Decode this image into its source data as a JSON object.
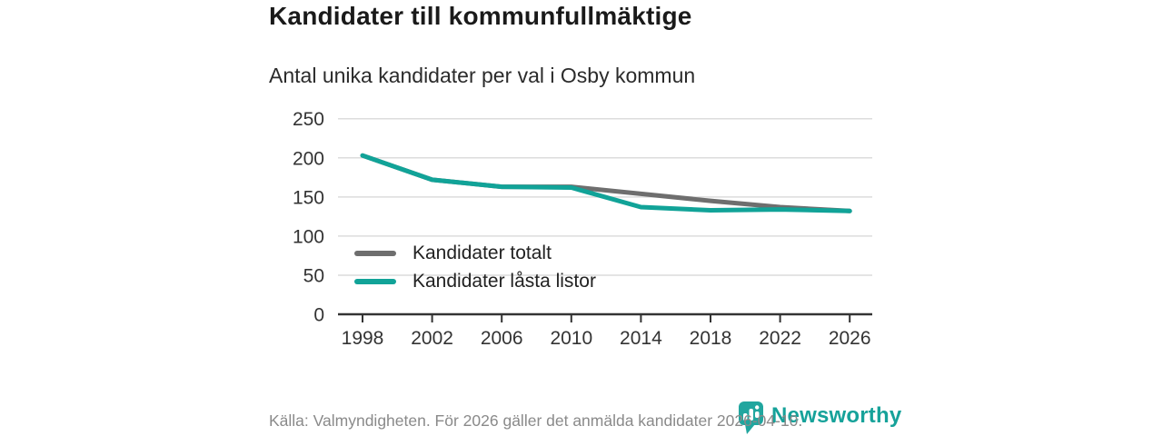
{
  "header": {
    "title": "Kandidater till kommunfullmäktige",
    "subtitle": "Antal unika kandidater per val i Osby kommun"
  },
  "chart_data": {
    "type": "line",
    "title": "Kandidater till kommunfullmäktige",
    "subtitle": "Antal unika kandidater per val i Osby kommun",
    "x": [
      1998,
      2002,
      2006,
      2010,
      2014,
      2018,
      2022,
      2026
    ],
    "series": [
      {
        "name": "Kandidater totalt",
        "color": "#6e6e6e",
        "values": [
          203,
          172,
          163,
          163,
          154,
          145,
          137,
          132
        ]
      },
      {
        "name": "Kandidater låsta listor",
        "color": "#11a398",
        "values": [
          203,
          172,
          163,
          162,
          137,
          133,
          134,
          132
        ]
      }
    ],
    "xlabel": "",
    "ylabel": "",
    "ylim": [
      0,
      250
    ],
    "yticks": [
      0,
      50,
      100,
      150,
      200,
      250
    ],
    "grid": "horizontal",
    "legend_position": "inside-bottom-left"
  },
  "colors": {
    "grid": "#dcdcdc",
    "axis": "#333333",
    "tick_text": "#333333",
    "muted_text": "#8a8a8a",
    "accent": "#16a29a"
  },
  "footer": {
    "source": "Källa: Valmyndigheten. För 2026 gäller det anmälda kandidater 2026-04-10."
  },
  "logo": {
    "text": "Newsworthy"
  }
}
